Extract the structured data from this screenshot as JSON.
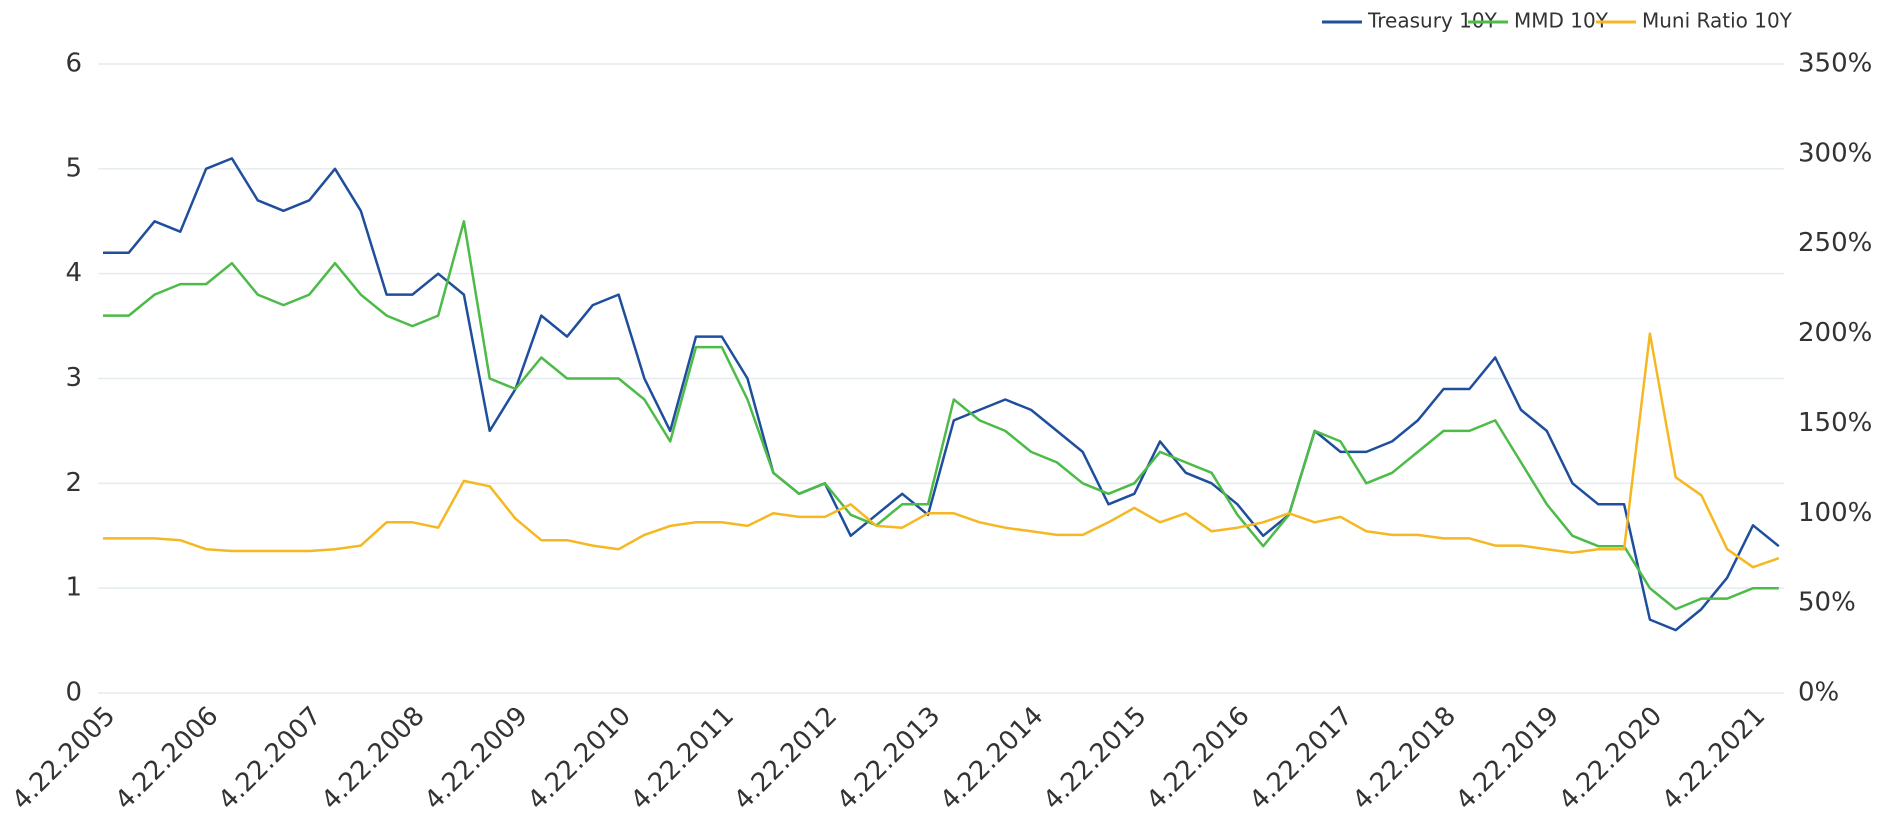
{
  "chart_data": {
    "type": "line",
    "categories": [
      "4.22.2005",
      null,
      null,
      null,
      "4.22.2006",
      null,
      null,
      null,
      "4.22.2007",
      null,
      null,
      null,
      "4.22.2008",
      null,
      null,
      null,
      "4.22.2009",
      null,
      null,
      null,
      "4.22.2010",
      null,
      null,
      null,
      "4.22.2011",
      null,
      null,
      null,
      "4.22.2012",
      null,
      null,
      null,
      "4.22.2013",
      null,
      null,
      null,
      "4.22.2014",
      null,
      null,
      null,
      "4.22.2015",
      null,
      null,
      null,
      "4.22.2016",
      null,
      null,
      null,
      "4.22.2017",
      null,
      null,
      null,
      "4.22.2018",
      null,
      null,
      null,
      "4.22.2019",
      null,
      null,
      null,
      "4.22.2020",
      null,
      null,
      null,
      "4.22.2021",
      null
    ],
    "series": [
      {
        "name": "Treasury 10Y",
        "color": "#1f4e9c",
        "values": [
          4.2,
          4.2,
          4.5,
          4.4,
          5.0,
          5.1,
          4.7,
          4.6,
          4.7,
          5.0,
          4.6,
          3.8,
          3.8,
          4.0,
          3.8,
          2.5,
          2.9,
          3.6,
          3.4,
          3.7,
          3.8,
          3.0,
          2.5,
          3.4,
          3.4,
          3.0,
          2.1,
          1.9,
          2.0,
          1.5,
          1.7,
          1.9,
          1.7,
          2.6,
          2.7,
          2.8,
          2.7,
          2.5,
          2.3,
          1.8,
          1.9,
          2.4,
          2.1,
          2.0,
          1.8,
          1.5,
          1.7,
          2.5,
          2.3,
          2.3,
          2.4,
          2.6,
          2.9,
          2.9,
          3.2,
          2.7,
          2.5,
          2.0,
          1.8,
          1.8,
          0.7,
          0.6,
          0.8,
          1.1,
          1.6,
          1.4
        ]
      },
      {
        "name": "MMD 10Y",
        "color": "#4cbb47",
        "values": [
          3.6,
          3.6,
          3.8,
          3.9,
          3.9,
          4.1,
          3.8,
          3.7,
          3.8,
          4.1,
          3.8,
          3.6,
          3.5,
          3.6,
          4.5,
          3.0,
          2.9,
          3.2,
          3.0,
          3.0,
          3.0,
          2.8,
          2.4,
          3.3,
          3.3,
          2.8,
          2.1,
          1.9,
          2.0,
          1.7,
          1.6,
          1.8,
          1.8,
          2.8,
          2.6,
          2.5,
          2.3,
          2.2,
          2.0,
          1.9,
          2.0,
          2.3,
          2.2,
          2.1,
          1.7,
          1.4,
          1.7,
          2.5,
          2.4,
          2.0,
          2.1,
          2.3,
          2.5,
          2.5,
          2.6,
          2.2,
          1.8,
          1.5,
          1.4,
          1.4,
          1.0,
          0.8,
          0.9,
          0.9,
          1.0,
          1.0
        ]
      },
      {
        "name": "Muni Ratio 10Y",
        "color": "#f5b823",
        "axis": "y2",
        "values": [
          86,
          86,
          86,
          85,
          80,
          79,
          79,
          79,
          79,
          80,
          82,
          95,
          95,
          92,
          118,
          115,
          97,
          85,
          85,
          82,
          80,
          88,
          93,
          95,
          95,
          93,
          100,
          98,
          98,
          105,
          93,
          92,
          100,
          100,
          95,
          92,
          90,
          88,
          88,
          95,
          103,
          95,
          100,
          90,
          92,
          95,
          100,
          95,
          98,
          90,
          88,
          88,
          86,
          86,
          82,
          82,
          80,
          78,
          80,
          80,
          200,
          120,
          110,
          80,
          70,
          75
        ]
      }
    ],
    "ylim": [
      0,
      6
    ],
    "yticks": [
      0,
      1,
      2,
      3,
      4,
      5,
      6
    ],
    "y2lim": [
      0,
      350
    ],
    "y2ticks": [
      {
        "value": 0,
        "label": "0%"
      },
      {
        "value": 50,
        "label": "50%"
      },
      {
        "value": 100,
        "label": "100%"
      },
      {
        "value": 150,
        "label": "150%"
      },
      {
        "value": 200,
        "label": "200%"
      },
      {
        "value": 250,
        "label": "250%"
      },
      {
        "value": 300,
        "label": "300%"
      },
      {
        "value": 350,
        "label": "350%"
      }
    ],
    "grid": true,
    "legend": "top-right"
  }
}
